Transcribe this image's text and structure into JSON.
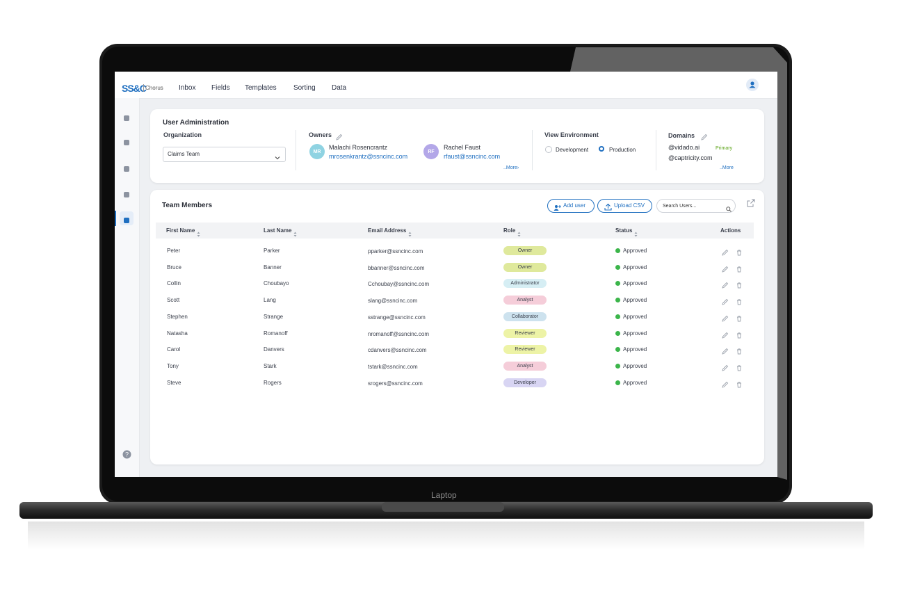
{
  "header": {
    "logo": "SS&C",
    "product": "Chorus",
    "nav": [
      "Inbox",
      "Fields",
      "Templates",
      "Sorting",
      "Data"
    ]
  },
  "user_admin": {
    "title": "User Administration",
    "organization": {
      "label": "Organization",
      "value": "Claims Team"
    },
    "owners": {
      "label": "Owners",
      "people": [
        {
          "initials": "MR",
          "name": "Malachi Rosencrantz",
          "email": "mrosenkrantz@ssncinc.com",
          "color": "#8fd3e2"
        },
        {
          "initials": "RF",
          "name": "Rachel Faust",
          "email": "rfaust@ssncinc.com",
          "color": "#b3a7e8"
        }
      ],
      "more": "..More›"
    },
    "view_environment": {
      "label": "View Environment",
      "options": [
        "Development",
        "Production"
      ],
      "selected": 1
    },
    "domains": {
      "label": "Domains",
      "items": [
        {
          "domain": "@vidado.ai",
          "tag": "Primary"
        },
        {
          "domain": "@captricity.com"
        }
      ],
      "more": "..More"
    }
  },
  "team": {
    "title": "Team Members",
    "add_user": "Add user",
    "upload_csv": "Upload CSV",
    "search_placeholder": "Search Users...",
    "columns": [
      "First Name",
      "Last Name",
      "Email Address",
      "Role",
      "Status",
      "Actions"
    ],
    "rows": [
      {
        "first": "Peter",
        "last": "Parker",
        "email": "pparker@ssncinc.com",
        "role": "Owner",
        "role_color": "#dfe99c",
        "status": "Approved"
      },
      {
        "first": "Bruce",
        "last": "Banner",
        "email": "bbanner@ssncinc.com",
        "role": "Owner",
        "role_color": "#dfe99c",
        "status": "Approved"
      },
      {
        "first": "Collin",
        "last": "Choubayo",
        "email": "Cchoubay@ssncinc.com",
        "role": "Administrator",
        "role_color": "#d6eef4",
        "status": "Approved"
      },
      {
        "first": "Scott",
        "last": "Lang",
        "email": "slang@ssncinc.com",
        "role": "Analyst",
        "role_color": "#f5cdd9",
        "status": "Approved"
      },
      {
        "first": "Stephen",
        "last": "Strange",
        "email": "sstrange@ssncinc.com",
        "role": "Collaborator",
        "role_color": "#cde2ee",
        "status": "Approved"
      },
      {
        "first": "Natasha",
        "last": "Romanoff",
        "email": "nromanoff@ssncinc.com",
        "role": "Reviewer",
        "role_color": "#edf3a6",
        "status": "Approved"
      },
      {
        "first": "Carol",
        "last": "Danvers",
        "email": "cdanvers@ssncinc.com",
        "role": "Reviewer",
        "role_color": "#edf3a6",
        "status": "Approved"
      },
      {
        "first": "Tony",
        "last": "Stark",
        "email": "tstark@ssncinc.com",
        "role": "Analyst",
        "role_color": "#f5cdd9",
        "status": "Approved"
      },
      {
        "first": "Steve",
        "last": "Rogers",
        "email": "srogers@ssncinc.com",
        "role": "Developer",
        "role_color": "#d8d5f3",
        "status": "Approved"
      }
    ]
  },
  "laptop_label": "Laptop"
}
